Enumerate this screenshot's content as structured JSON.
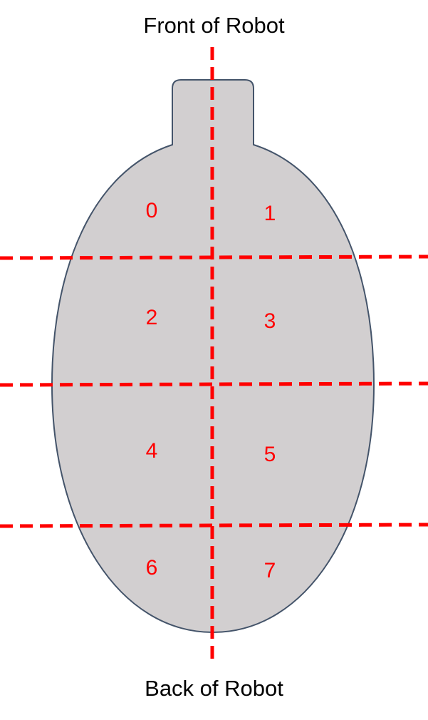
{
  "labels": {
    "front": "Front of Robot",
    "back": "Back of Robot"
  },
  "zones": [
    "0",
    "1",
    "2",
    "3",
    "4",
    "5",
    "6",
    "7"
  ],
  "colors": {
    "body_fill": "#d2cfd0",
    "body_outline": "#44546a",
    "divider": "#ff0000",
    "zone_label": "#ff0000",
    "caption": "#000000"
  }
}
